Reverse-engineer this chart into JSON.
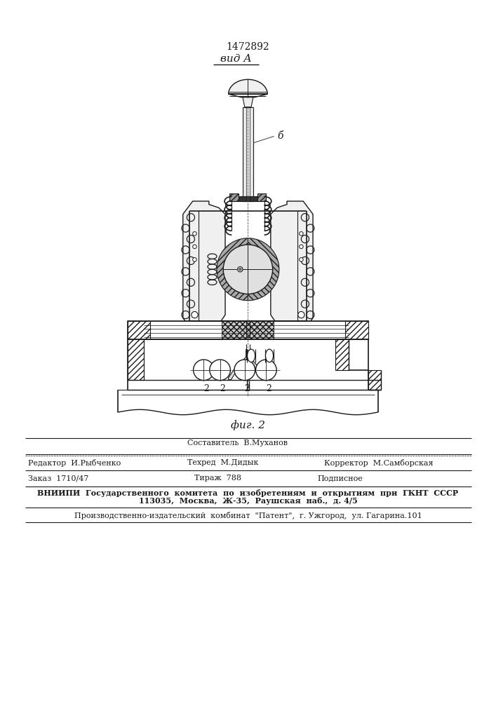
{
  "patent_number": "1472892",
  "view_label": "вид А",
  "fig_label": "фиг. 2",
  "label_b": "б",
  "label_2": "2",
  "bg_color": "#ffffff",
  "lc": "#1a1a1a",
  "footer": {
    "line1_left": "Редактор  И.Рыбченко",
    "line1_center": "Составитель  В.Муханов",
    "line1_center2": "Техред  М.Дидык",
    "line1_right": "Корректор  М.Самборская",
    "line2_left": "Заказ  1710/47",
    "line2_center": "Тираж  788",
    "line2_right": "Подписное",
    "line3": "ВНИИПИ  Государственного  комитета  по  изобретениям  и  открытиям  при  ГКНТ  СССР",
    "line4": "113035,  Москва,  Ж-35,  Раушская  наб.,  д. 4/5",
    "line5": "Производственно-издательский  комбинат  \"Патент\",  г. Ужгород,  ул. Гагарина.101"
  }
}
